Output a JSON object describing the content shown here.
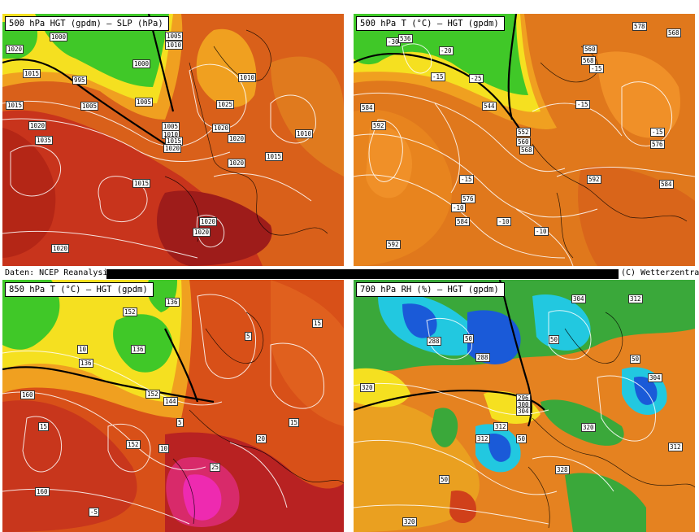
{
  "footer": {
    "source": "Daten: NCEP Reanalysis",
    "credit": "(C) Wetterzentrale"
  },
  "panels": [
    {
      "title": "500 hPa HGT (gpdm) – SLP (hPa)",
      "labels": [
        "1000",
        "1005",
        "1010",
        "1020",
        "1015",
        "995",
        "1005",
        "1000",
        "1005",
        "1015",
        "1020",
        "1035",
        "1005",
        "1010",
        "1015",
        "1020",
        "1025",
        "1020",
        "1010",
        "1015",
        "1020",
        "1015",
        "1020",
        "1020",
        "1020",
        "1020",
        "1010"
      ]
    },
    {
      "title": "500 hPa T (°C) – HGT (gpdm)",
      "labels": [
        "-30",
        "536",
        "-20",
        "-15",
        "-25",
        "544",
        "552",
        "560",
        "568",
        "-15",
        "584",
        "592",
        "-15",
        "576",
        "-10",
        "584",
        "-10",
        "-10",
        "592",
        "592",
        "576",
        "560",
        "568",
        "584",
        "-15",
        "578",
        "568",
        "-15"
      ]
    },
    {
      "title": "850 hPa T (°C) – HGT (gpdm)",
      "labels": [
        "136",
        "152",
        "136",
        "136",
        "144",
        "152",
        "160",
        "152",
        "160",
        "15",
        "10",
        "20",
        "25",
        "5",
        "15",
        "-5",
        "15",
        "10",
        "5"
      ]
    },
    {
      "title": "700 hPa RH (%) – HGT (gpdm)",
      "labels": [
        "288",
        "304",
        "312",
        "288",
        "296",
        "300",
        "304",
        "312",
        "312",
        "320",
        "328",
        "320",
        "304",
        "312",
        "50",
        "50",
        "50",
        "50",
        "50",
        "320"
      ]
    }
  ]
}
